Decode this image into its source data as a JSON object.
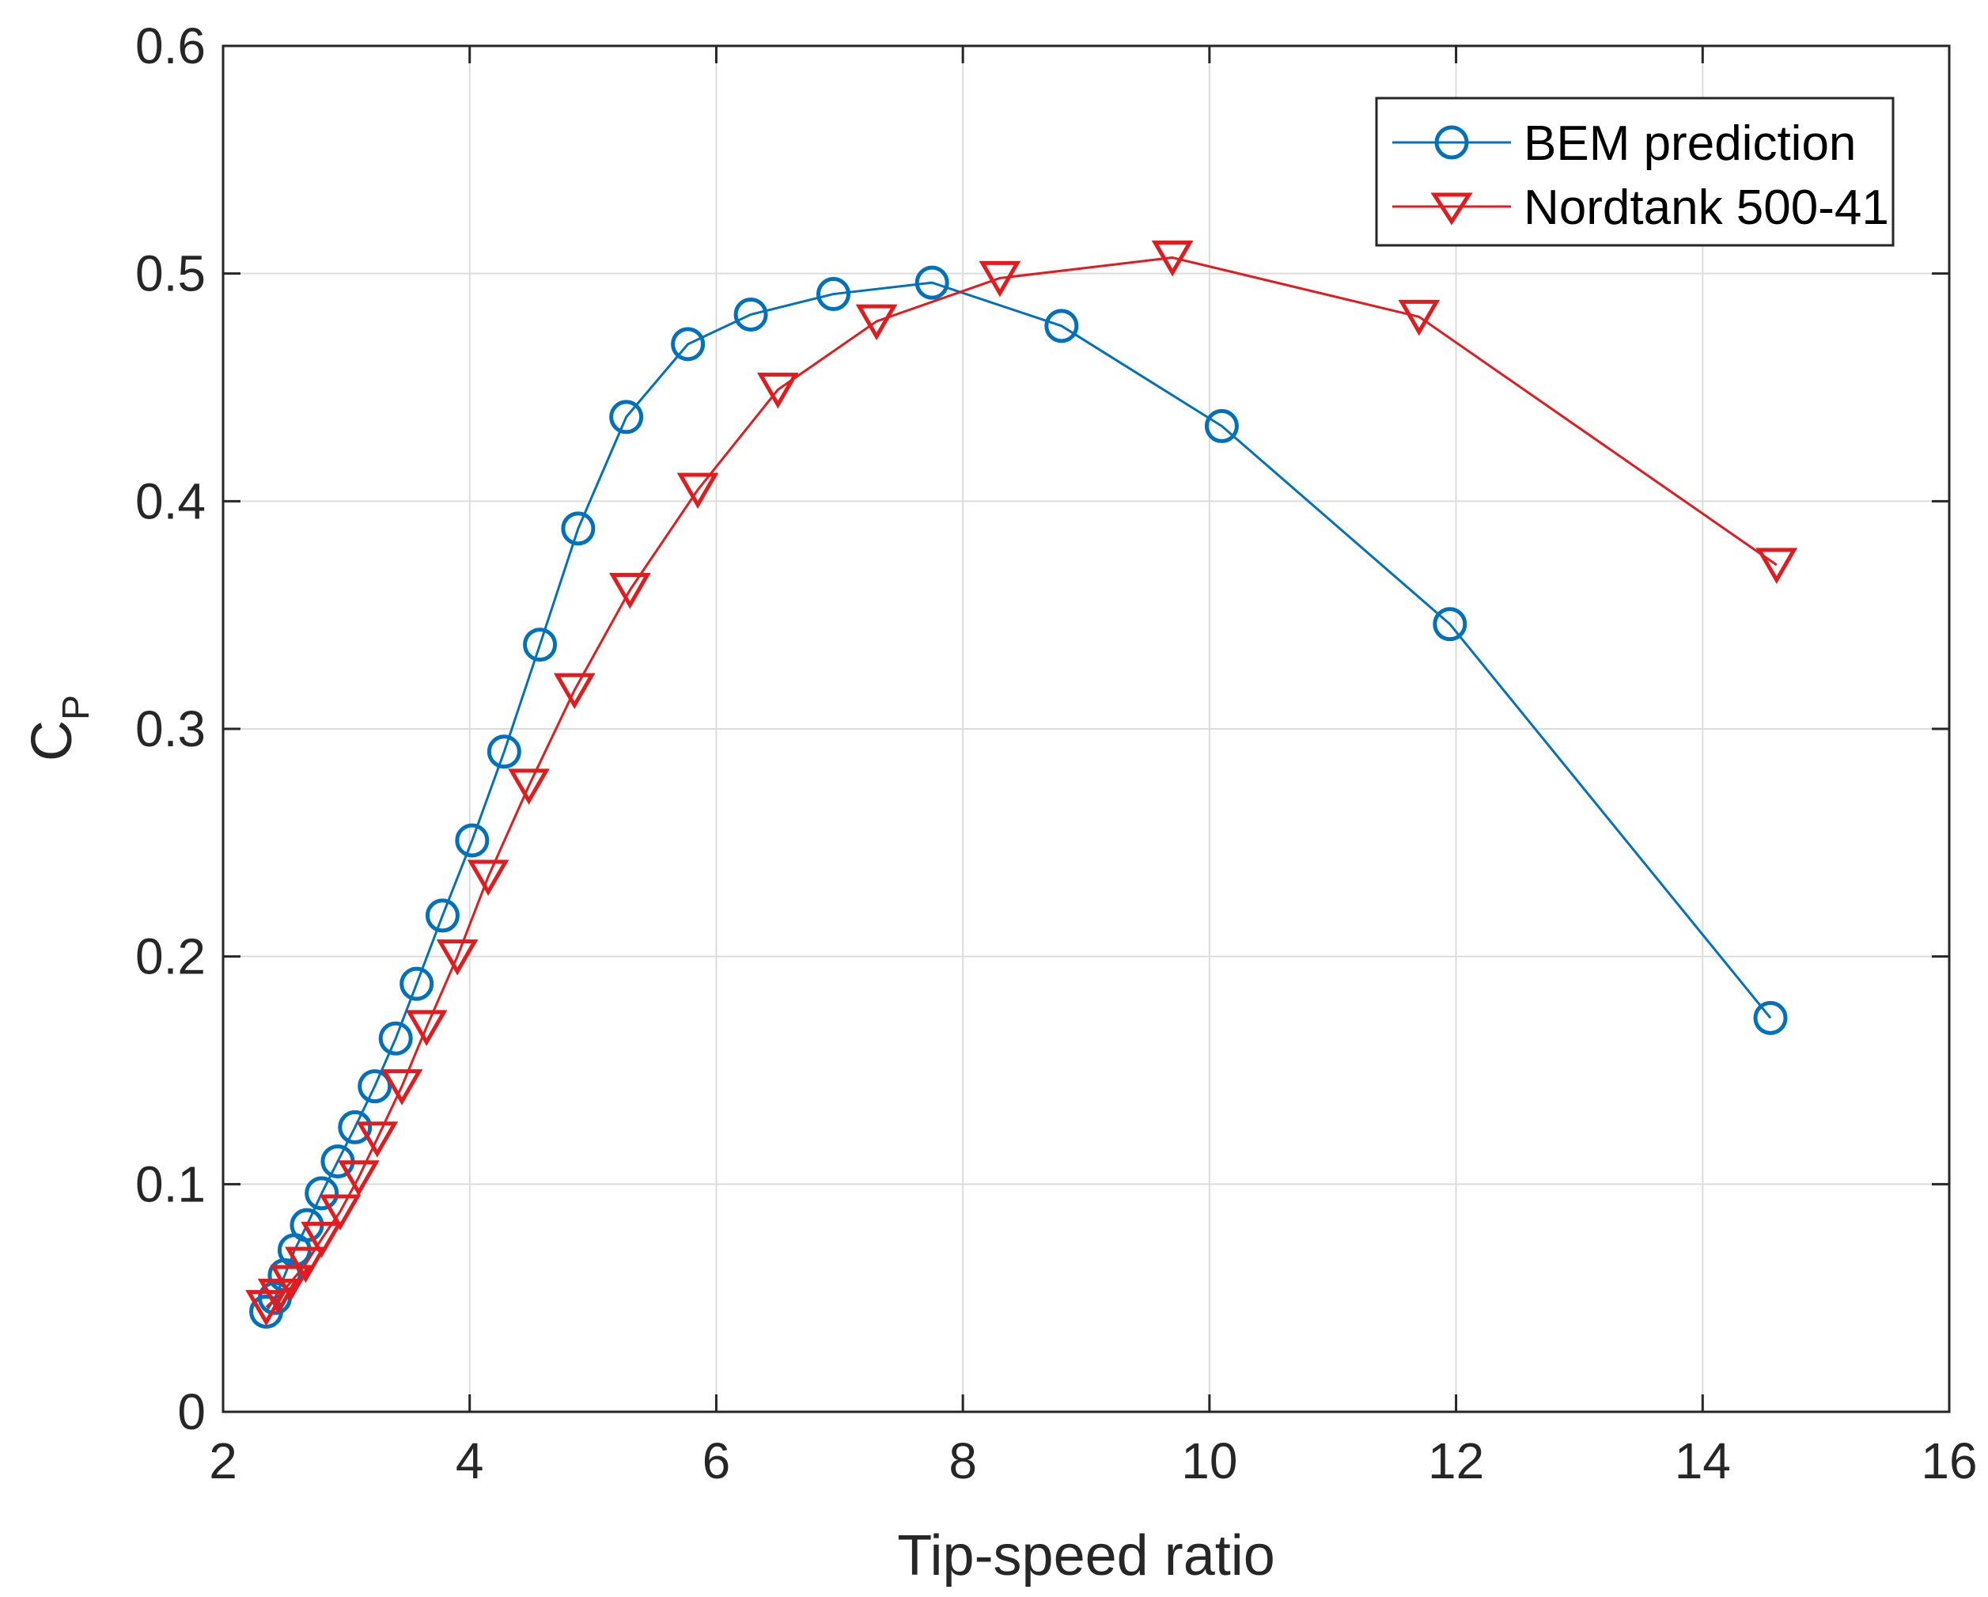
{
  "chart_data": {
    "type": "line",
    "title": "",
    "xlabel": "Tip-speed ratio",
    "ylabel_main": "C",
    "ylabel_sub": "P",
    "xlim": [
      2,
      16
    ],
    "ylim": [
      0,
      0.6
    ],
    "xticks": [
      2,
      4,
      6,
      8,
      10,
      12,
      14,
      16
    ],
    "yticks": [
      0,
      0.1,
      0.2,
      0.3,
      0.4,
      0.5,
      0.6
    ],
    "xtick_labels": [
      "2",
      "4",
      "6",
      "8",
      "10",
      "12",
      "14",
      "16"
    ],
    "ytick_labels": [
      "0",
      "0.1",
      "0.2",
      "0.3",
      "0.4",
      "0.5",
      "0.6"
    ],
    "grid": true,
    "legend_position": "top-right",
    "series": [
      {
        "name": "BEM prediction",
        "color": "#0072BD",
        "marker": "circle",
        "x": [
          2.35,
          2.42,
          2.5,
          2.58,
          2.68,
          2.8,
          2.93,
          3.07,
          3.23,
          3.4,
          3.57,
          3.78,
          4.02,
          4.28,
          4.57,
          4.88,
          5.27,
          5.77,
          6.28,
          6.95,
          7.75,
          8.8,
          10.1,
          11.95,
          14.55
        ],
        "y": [
          0.044,
          0.05,
          0.06,
          0.071,
          0.082,
          0.096,
          0.11,
          0.125,
          0.143,
          0.164,
          0.188,
          0.218,
          0.251,
          0.29,
          0.337,
          0.388,
          0.437,
          0.469,
          0.482,
          0.491,
          0.496,
          0.477,
          0.433,
          0.346,
          0.173
        ]
      },
      {
        "name": "Nordtank 500-41",
        "color": "#E41A1C",
        "marker": "triangle-down",
        "x": [
          2.35,
          2.45,
          2.55,
          2.67,
          2.8,
          2.95,
          3.1,
          3.25,
          3.45,
          3.65,
          3.9,
          4.15,
          4.48,
          4.85,
          5.3,
          5.85,
          6.5,
          7.3,
          8.3,
          9.7,
          11.7,
          14.6
        ],
        "y": [
          0.046,
          0.051,
          0.057,
          0.065,
          0.076,
          0.088,
          0.103,
          0.12,
          0.143,
          0.169,
          0.2,
          0.235,
          0.275,
          0.317,
          0.361,
          0.405,
          0.449,
          0.479,
          0.498,
          0.507,
          0.481,
          0.372
        ]
      }
    ]
  }
}
